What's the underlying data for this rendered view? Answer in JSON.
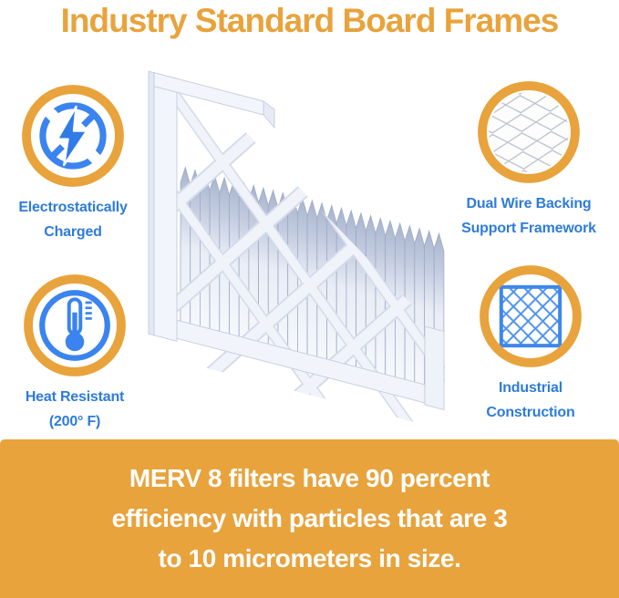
{
  "title": "Industry Standard Board Frames",
  "features": {
    "electro": {
      "lines": [
        "Electrostatically",
        "Charged"
      ],
      "icon": "lightning-icon"
    },
    "wire": {
      "lines": [
        "Dual Wire Backing",
        "Support Framework"
      ],
      "icon": "wire-mesh-icon"
    },
    "heat": {
      "lines": [
        "Heat Resistant",
        "(200° F)"
      ],
      "icon": "thermometer-icon"
    },
    "industrial": {
      "lines": [
        "Industrial",
        "Construction"
      ],
      "icon": "diamond-lattice-icon"
    }
  },
  "illustration": {
    "name": "pleated air filter with cutaway board frame"
  },
  "banner": {
    "lines": [
      "MERV 8 filters have 90 percent",
      "efficiency with particles that are 3",
      "to 10 micrometers in size."
    ]
  },
  "colors": {
    "accent_orange": "#E8A33C",
    "text_blue": "#2E7CD9",
    "icon_blue": "#3B84EF",
    "pleat_gray_blue": "#b4bfd6",
    "frame_white": "#f2f5fb"
  }
}
